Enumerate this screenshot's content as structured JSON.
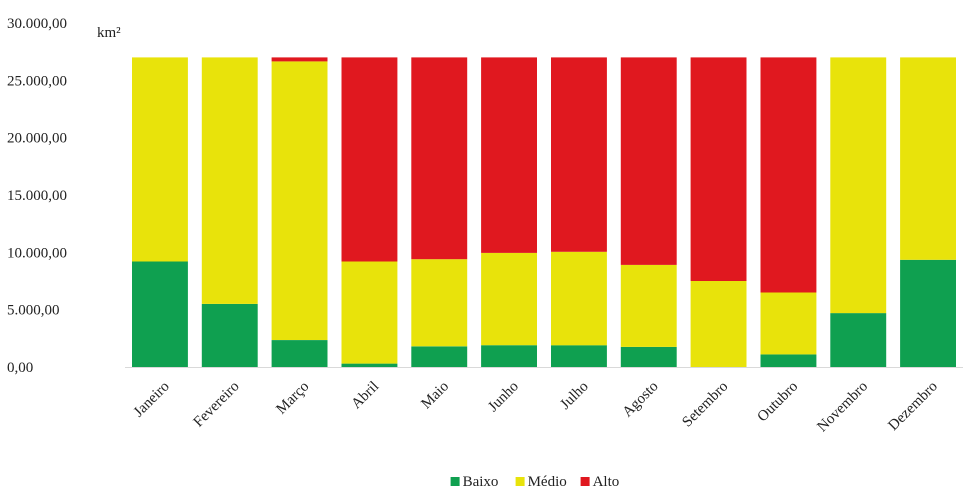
{
  "colors": {
    "Baixo": "#0fa050",
    "Médio": "#e8e30b",
    "Alto": "#e0181f"
  },
  "chart_data": {
    "type": "bar",
    "stacked": true,
    "unit_label": "km²",
    "categories": [
      "Janeiro",
      "Fevereiro",
      "Março",
      "Abril",
      "Maio",
      "Junho",
      "Julho",
      "Agosto",
      "Setembro",
      "Outubro",
      "Novembro",
      "Dezembro"
    ],
    "series": [
      {
        "name": "Baixo",
        "values": [
          9200,
          5500,
          2350,
          300,
          1800,
          1900,
          1900,
          1750,
          0,
          1100,
          4700,
          9350
        ]
      },
      {
        "name": "Médio",
        "values": [
          17800,
          21500,
          24300,
          8900,
          7600,
          8050,
          8150,
          7150,
          7500,
          5400,
          22300,
          17650
        ]
      },
      {
        "name": "Alto",
        "values": [
          0,
          0,
          350,
          17800,
          17600,
          17050,
          16950,
          18100,
          19500,
          20500,
          0,
          0
        ]
      }
    ],
    "ylim": [
      0,
      30000
    ],
    "yticks": [
      0,
      5000,
      10000,
      15000,
      20000,
      25000,
      30000
    ],
    "ytick_labels": [
      "0,00",
      "5.000,00",
      "10.000,00",
      "15.000,00",
      "20.000,00",
      "25.000,00",
      "30.000,00"
    ],
    "legend": {
      "position": "bottom",
      "entries": [
        "Baixo",
        "Médio",
        "Alto"
      ]
    }
  }
}
